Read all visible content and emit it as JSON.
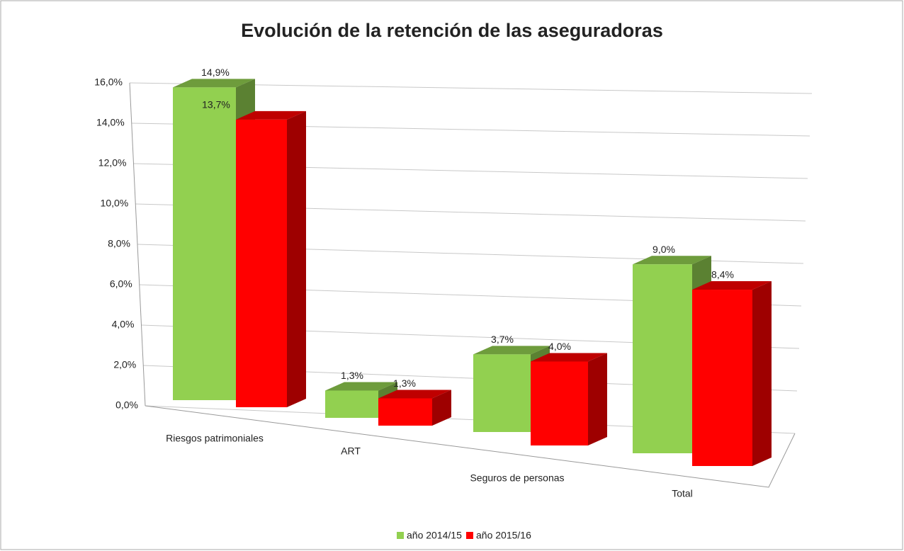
{
  "chart_data": {
    "type": "bar3d",
    "title": "Evolución de la retención de las aseguradoras",
    "categories": [
      "Riesgos patrimoniales",
      "ART",
      "Seguros de personas",
      "Total"
    ],
    "series": [
      {
        "name": "año 2014/15",
        "color": "#92d050",
        "values": [
          14.9,
          1.3,
          3.7,
          9.0
        ],
        "value_labels": [
          "14,9%",
          "1,3%",
          "3,7%",
          "9,0%"
        ]
      },
      {
        "name": "año 2015/16",
        "color": "#ff0000",
        "values": [
          13.7,
          1.3,
          4.0,
          8.4
        ],
        "value_labels": [
          "13,7%",
          "1,3%",
          "4,0%",
          "8,4%"
        ]
      }
    ],
    "ylim": [
      0,
      16
    ],
    "yticks": [
      {
        "value": 0,
        "label": "0,0%"
      },
      {
        "value": 2,
        "label": "2,0%"
      },
      {
        "value": 4,
        "label": "4,0%"
      },
      {
        "value": 6,
        "label": "6,0%"
      },
      {
        "value": 8,
        "label": "8,0%"
      },
      {
        "value": 10,
        "label": "10,0%"
      },
      {
        "value": 12,
        "label": "12,0%"
      },
      {
        "value": 14,
        "label": "14,0%"
      },
      {
        "value": 16,
        "label": "16,0%"
      }
    ],
    "grid": true,
    "legend": "bottom"
  }
}
